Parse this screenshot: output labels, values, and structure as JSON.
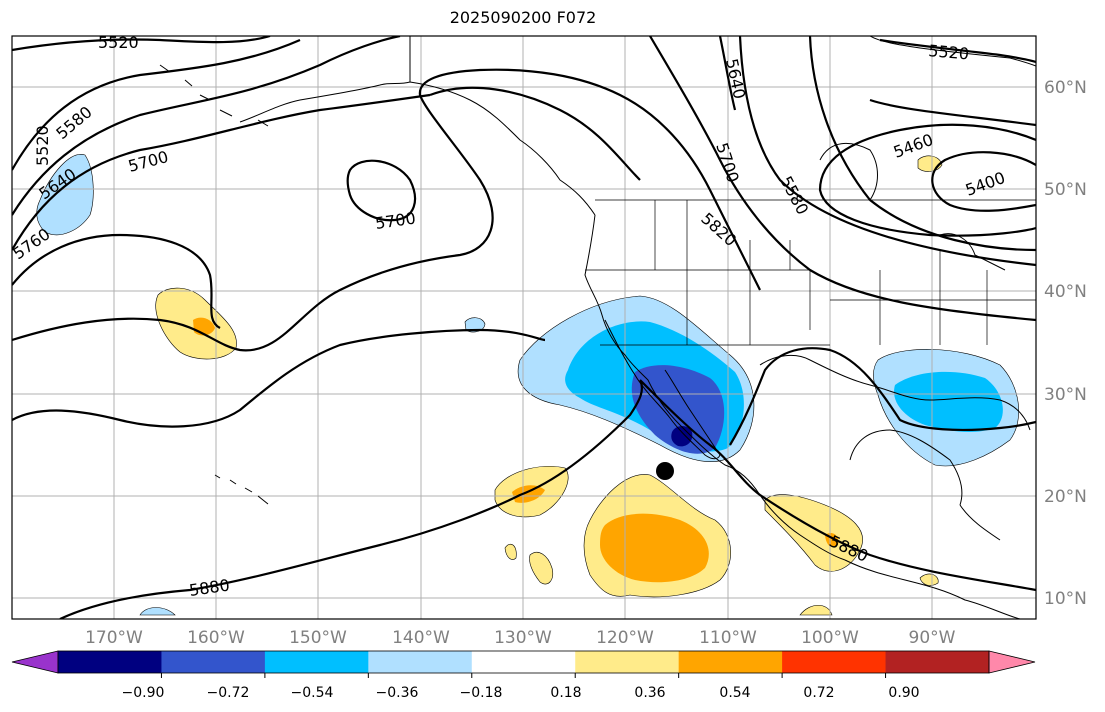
{
  "title": "2025090200 F072",
  "latitude_labels": [
    "60°N",
    "50°N",
    "40°N",
    "30°N",
    "20°N",
    "10°N"
  ],
  "longitude_labels": [
    "170°W",
    "160°W",
    "150°W",
    "140°W",
    "130°W",
    "120°W",
    "110°W",
    "100°W",
    "90°W"
  ],
  "contour_labels": [
    "5520",
    "5580",
    "5640",
    "5700",
    "5760",
    "5700",
    "5640",
    "5700",
    "5580",
    "5820",
    "5880",
    "5880",
    "5520",
    "5460",
    "5400",
    "5520"
  ],
  "colorbar": {
    "tick_labels": [
      "−0.90",
      "−0.72",
      "−0.54",
      "−0.36",
      "−0.18",
      "0.18",
      "0.36",
      "0.54",
      "0.72",
      "0.90"
    ],
    "colors": [
      "#9933cc",
      "#000080",
      "#3355cc",
      "#00bfff",
      "#b0e0ff",
      "#ffffff",
      "#ffeb8a",
      "#ffa500",
      "#ff3300",
      "#b22222",
      "#ff88aa"
    ]
  },
  "colors": {
    "land_outline": "#000000",
    "contour": "#000000",
    "grid": "#b0b0b0",
    "marker": "#000000"
  }
}
